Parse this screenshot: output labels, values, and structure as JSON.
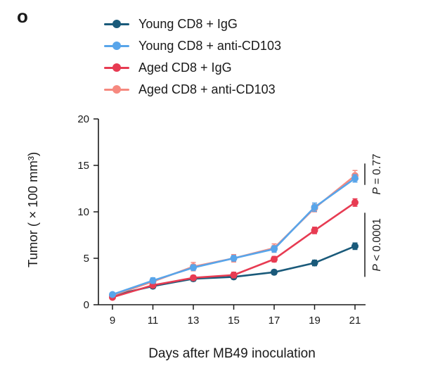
{
  "panel_label": "o",
  "chart_data": {
    "type": "line",
    "x": [
      9,
      11,
      13,
      15,
      17,
      19,
      21
    ],
    "xticks": [
      9,
      11,
      13,
      15,
      17,
      19,
      21
    ],
    "yticks": [
      0,
      5,
      10,
      15,
      20
    ],
    "ylim": [
      0,
      20
    ],
    "xlabel": "Days after MB49 inoculation",
    "ylabel": "Tumor (×100 mm³)",
    "grid": false,
    "legend_position": "top",
    "series": [
      {
        "name": "Young CD8 + IgG",
        "color": "#1a5a7a",
        "values": [
          1.0,
          2.0,
          2.8,
          3.0,
          3.5,
          4.5,
          6.3
        ],
        "errors": [
          0.2,
          0.25,
          0.25,
          0.25,
          0.25,
          0.3,
          0.35
        ]
      },
      {
        "name": "Young CD8 + anti-CD103",
        "color": "#58a5ea",
        "values": [
          1.1,
          2.6,
          4.0,
          5.0,
          6.0,
          10.5,
          13.6
        ],
        "errors": [
          0.2,
          0.3,
          0.3,
          0.3,
          0.35,
          0.45,
          0.4
        ]
      },
      {
        "name": "Aged CD8 + IgG",
        "color": "#e73b52",
        "values": [
          0.8,
          2.1,
          2.9,
          3.2,
          4.9,
          8.0,
          11.0
        ],
        "errors": [
          0.15,
          0.25,
          0.25,
          0.3,
          0.3,
          0.35,
          0.4
        ]
      },
      {
        "name": "Aged CD8 + anti-CD103",
        "color": "#f6897f",
        "values": [
          1.0,
          2.5,
          4.1,
          5.0,
          6.1,
          10.4,
          13.9
        ],
        "errors": [
          0.2,
          0.3,
          0.45,
          0.4,
          0.45,
          0.4,
          0.55
        ]
      }
    ],
    "annotations": [
      {
        "symbol": "P",
        "text": " = 0.77",
        "bar": [
          12.9,
          15.2
        ]
      },
      {
        "symbol": "P",
        "text": " < 0.0001",
        "bar": [
          3.0,
          9.9
        ]
      }
    ]
  }
}
